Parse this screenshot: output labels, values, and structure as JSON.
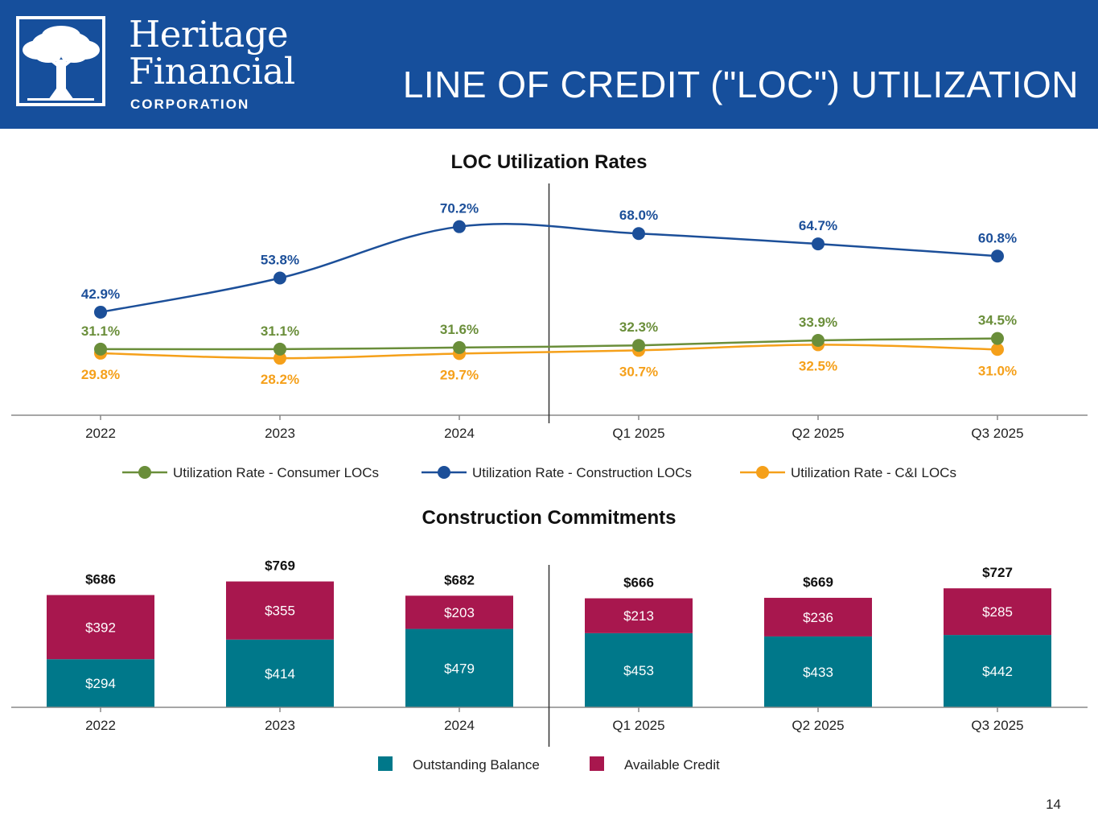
{
  "header": {
    "brand_line1": "Heritage",
    "brand_line2": "Financial",
    "brand_line3": "CORPORATION",
    "title": "LINE OF CREDIT (\"LOC\") UTILIZATION",
    "logo_icon": "oak-tree-icon"
  },
  "page_number": "14",
  "colors": {
    "header_bg": "#164f9c",
    "consumer": "#6a8e3a",
    "construction": "#1c4f99",
    "cni": "#f5a01a",
    "outstanding": "#00788a",
    "available": "#a8174e"
  },
  "chart_data": [
    {
      "type": "line",
      "title": "LOC Utilization Rates",
      "categories": [
        "2022",
        "2023",
        "2024",
        "Q1 2025",
        "Q2 2025",
        "Q3 2025"
      ],
      "series": [
        {
          "name": "Utilization Rate - Consumer LOCs",
          "values": [
            31.1,
            31.1,
            31.6,
            32.3,
            33.9,
            34.5
          ],
          "labels": [
            "31.1%",
            "31.1%",
            "31.6%",
            "32.3%",
            "33.9%",
            "34.5%"
          ],
          "label_position": "above"
        },
        {
          "name": "Utilization Rate - Construction LOCs",
          "values": [
            42.9,
            53.8,
            70.2,
            68.0,
            64.7,
            60.8
          ],
          "labels": [
            "42.9%",
            "53.8%",
            "70.2%",
            "68.0%",
            "64.7%",
            "60.8%"
          ],
          "label_position": "above"
        },
        {
          "name": "Utilization Rate - C&I LOCs",
          "values": [
            29.8,
            28.2,
            29.7,
            30.7,
            32.5,
            31.0
          ],
          "labels": [
            "29.8%",
            "28.2%",
            "29.7%",
            "30.7%",
            "32.5%",
            "31.0%"
          ],
          "label_position": "below"
        }
      ],
      "ylim": [
        10,
        75
      ],
      "grid": false,
      "legend": "bottom",
      "divider_after_category": "2024"
    },
    {
      "type": "bar",
      "stacked": true,
      "title": "Construction Commitments",
      "categories": [
        "2022",
        "2023",
        "2024",
        "Q1 2025",
        "Q2 2025",
        "Q3 2025"
      ],
      "series": [
        {
          "name": "Outstanding Balance",
          "values": [
            294,
            414,
            479,
            453,
            433,
            442
          ],
          "labels": [
            "$294",
            "$414",
            "$479",
            "$453",
            "$433",
            "$442"
          ]
        },
        {
          "name": "Available Credit",
          "values": [
            392,
            355,
            203,
            213,
            236,
            285
          ],
          "labels": [
            "$392",
            "$355",
            "$203",
            "$213",
            "$236",
            "$285"
          ]
        }
      ],
      "totals": [
        686,
        769,
        682,
        666,
        669,
        727
      ],
      "total_labels": [
        "$686",
        "$769",
        "$682",
        "$666",
        "$669",
        "$727"
      ],
      "ylim": [
        0,
        880
      ],
      "grid": false,
      "legend": "bottom",
      "divider_after_category": "2024"
    }
  ]
}
